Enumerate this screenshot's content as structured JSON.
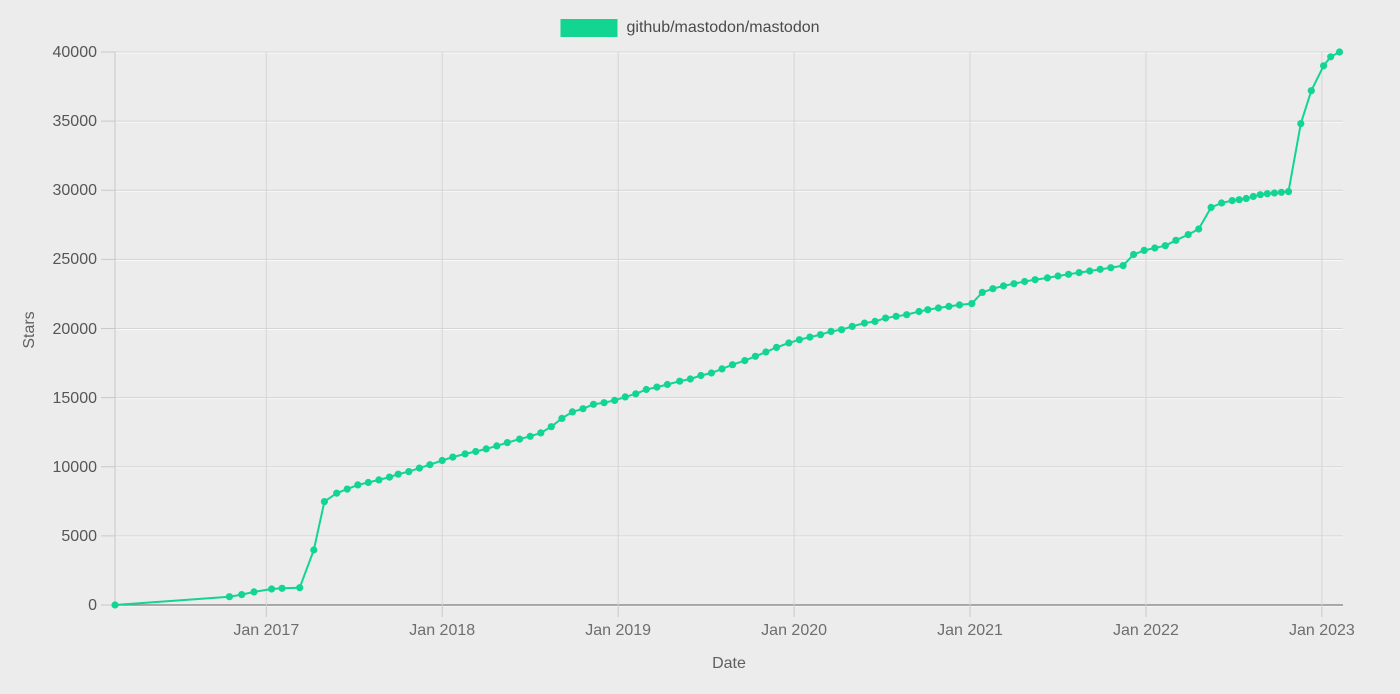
{
  "legend": {
    "label": "github/mastodon/mastodon"
  },
  "colors": {
    "series": "#12d591",
    "background": "#ececec",
    "grid": "#d5d5d5",
    "grid_bevel": "#fafafa",
    "axis_line": "#8f8f8f",
    "tick_mark": "#c9c9c9",
    "x_tick_text": "#6e6e6e",
    "y_tick_text": "#565656",
    "axis_title_text": "#5f5f5f",
    "legend_text": "#4a4a4a"
  },
  "chart_data": {
    "type": "line",
    "title": "",
    "xlabel": "Date",
    "ylabel": "Stars",
    "grid": true,
    "legend_position": "top-center",
    "xlim": [
      2016.14,
      2023.12
    ],
    "ylim": [
      0,
      40000
    ],
    "x_ticks": [
      {
        "year": 2017,
        "label": "Jan 2017"
      },
      {
        "year": 2018,
        "label": "Jan 2018"
      },
      {
        "year": 2019,
        "label": "Jan 2019"
      },
      {
        "year": 2020,
        "label": "Jan 2020"
      },
      {
        "year": 2021,
        "label": "Jan 2021"
      },
      {
        "year": 2022,
        "label": "Jan 2022"
      },
      {
        "year": 2023,
        "label": "Jan 2023"
      }
    ],
    "y_ticks": [
      {
        "value": 0,
        "label": "0"
      },
      {
        "value": 5000,
        "label": "5000"
      },
      {
        "value": 10000,
        "label": "10000"
      },
      {
        "value": 15000,
        "label": "15000"
      },
      {
        "value": 20000,
        "label": "20000"
      },
      {
        "value": 25000,
        "label": "25000"
      },
      {
        "value": 30000,
        "label": "30000"
      },
      {
        "value": 35000,
        "label": "35000"
      },
      {
        "value": 40000,
        "label": "40000"
      }
    ],
    "series": [
      {
        "name": "github/mastodon/mastodon",
        "color": "#12d591",
        "marker": "circle",
        "points": [
          [
            2016.14,
            0
          ],
          [
            2016.79,
            600
          ],
          [
            2016.86,
            750
          ],
          [
            2016.93,
            950
          ],
          [
            2017.03,
            1160
          ],
          [
            2017.09,
            1210
          ],
          [
            2017.19,
            1250
          ],
          [
            2017.27,
            3980
          ],
          [
            2017.33,
            7480
          ],
          [
            2017.4,
            8090
          ],
          [
            2017.46,
            8380
          ],
          [
            2017.52,
            8690
          ],
          [
            2017.58,
            8860
          ],
          [
            2017.64,
            9050
          ],
          [
            2017.7,
            9250
          ],
          [
            2017.75,
            9460
          ],
          [
            2017.81,
            9650
          ],
          [
            2017.87,
            9900
          ],
          [
            2017.93,
            10150
          ],
          [
            2018.0,
            10450
          ],
          [
            2018.06,
            10700
          ],
          [
            2018.13,
            10930
          ],
          [
            2018.19,
            11100
          ],
          [
            2018.25,
            11290
          ],
          [
            2018.31,
            11510
          ],
          [
            2018.37,
            11750
          ],
          [
            2018.44,
            12000
          ],
          [
            2018.5,
            12200
          ],
          [
            2018.56,
            12450
          ],
          [
            2018.62,
            12900
          ],
          [
            2018.68,
            13500
          ],
          [
            2018.74,
            13970
          ],
          [
            2018.8,
            14200
          ],
          [
            2018.86,
            14520
          ],
          [
            2018.92,
            14630
          ],
          [
            2018.98,
            14800
          ],
          [
            2019.04,
            15050
          ],
          [
            2019.1,
            15280
          ],
          [
            2019.16,
            15590
          ],
          [
            2019.22,
            15760
          ],
          [
            2019.28,
            15950
          ],
          [
            2019.35,
            16190
          ],
          [
            2019.41,
            16350
          ],
          [
            2019.47,
            16600
          ],
          [
            2019.53,
            16780
          ],
          [
            2019.59,
            17080
          ],
          [
            2019.65,
            17380
          ],
          [
            2019.72,
            17680
          ],
          [
            2019.78,
            17990
          ],
          [
            2019.84,
            18300
          ],
          [
            2019.9,
            18630
          ],
          [
            2019.97,
            18950
          ],
          [
            2020.03,
            19190
          ],
          [
            2020.09,
            19380
          ],
          [
            2020.15,
            19550
          ],
          [
            2020.21,
            19790
          ],
          [
            2020.27,
            19910
          ],
          [
            2020.33,
            20150
          ],
          [
            2020.4,
            20390
          ],
          [
            2020.46,
            20510
          ],
          [
            2020.52,
            20750
          ],
          [
            2020.58,
            20880
          ],
          [
            2020.64,
            21000
          ],
          [
            2020.71,
            21230
          ],
          [
            2020.76,
            21360
          ],
          [
            2020.82,
            21480
          ],
          [
            2020.88,
            21600
          ],
          [
            2020.94,
            21710
          ],
          [
            2021.01,
            21800
          ],
          [
            2021.07,
            22610
          ],
          [
            2021.13,
            22880
          ],
          [
            2021.19,
            23080
          ],
          [
            2021.25,
            23240
          ],
          [
            2021.31,
            23400
          ],
          [
            2021.37,
            23530
          ],
          [
            2021.44,
            23660
          ],
          [
            2021.5,
            23800
          ],
          [
            2021.56,
            23920
          ],
          [
            2021.62,
            24040
          ],
          [
            2021.68,
            24160
          ],
          [
            2021.74,
            24280
          ],
          [
            2021.8,
            24400
          ],
          [
            2021.87,
            24550
          ],
          [
            2021.93,
            25350
          ],
          [
            2021.99,
            25650
          ],
          [
            2022.05,
            25820
          ],
          [
            2022.11,
            25990
          ],
          [
            2022.17,
            26380
          ],
          [
            2022.24,
            26790
          ],
          [
            2022.3,
            27200
          ],
          [
            2022.37,
            28760
          ],
          [
            2022.43,
            29080
          ],
          [
            2022.49,
            29250
          ],
          [
            2022.53,
            29320
          ],
          [
            2022.57,
            29400
          ],
          [
            2022.61,
            29550
          ],
          [
            2022.65,
            29680
          ],
          [
            2022.69,
            29750
          ],
          [
            2022.73,
            29800
          ],
          [
            2022.77,
            29850
          ],
          [
            2022.81,
            29900
          ],
          [
            2022.88,
            34820
          ],
          [
            2022.94,
            37200
          ],
          [
            2023.01,
            39000
          ],
          [
            2023.05,
            39650
          ],
          [
            2023.1,
            40000
          ]
        ]
      }
    ]
  }
}
